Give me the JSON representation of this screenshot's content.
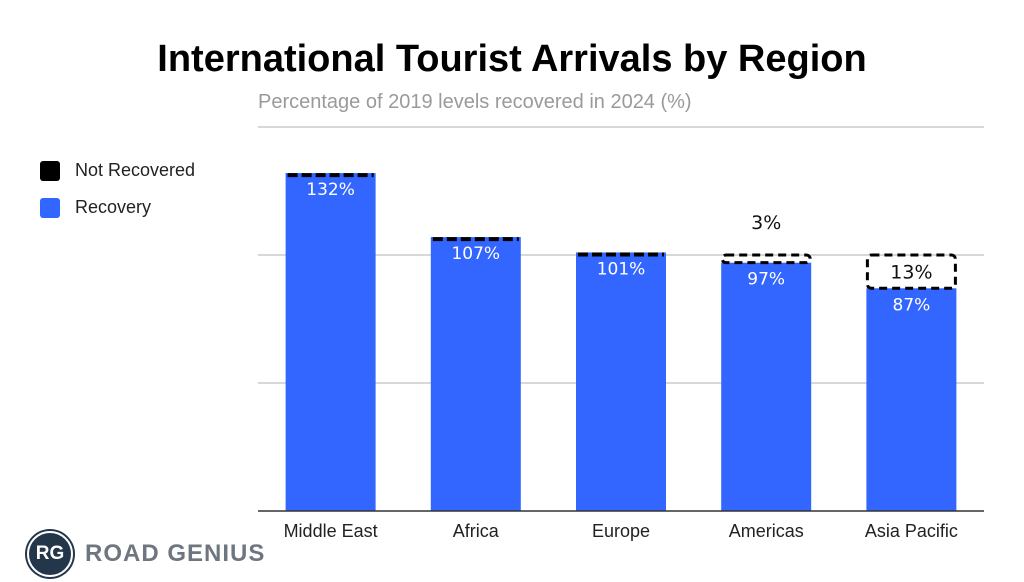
{
  "chart_data": {
    "type": "bar",
    "stacked": true,
    "title": "International Tourist Arrivals by Region",
    "subtitle": "Percentage of 2019 levels recovered in 2024 (%)",
    "categories": [
      "Middle East",
      "Africa",
      "Europe",
      "Americas",
      "Asia Pacific"
    ],
    "series": [
      {
        "name": "Recovery",
        "color": "#3366ff",
        "values": [
          132,
          107,
          101,
          97,
          87
        ],
        "labels": [
          "132%",
          "107%",
          "101%",
          "97%",
          "87%"
        ]
      },
      {
        "name": "Not Recovered",
        "color": "#000000",
        "values": [
          0,
          0,
          0,
          3,
          13
        ],
        "labels": [
          "",
          "",
          "",
          "3%",
          "13%"
        ]
      }
    ],
    "ylim": [
      0,
      150
    ],
    "gridlines": [
      50,
      100,
      150
    ],
    "grid": true,
    "legend": {
      "placement": "left",
      "entries": [
        "Not Recovered",
        "Recovery"
      ]
    }
  },
  "legend": {
    "items": [
      {
        "label": "Not Recovered",
        "color": "#000000"
      },
      {
        "label": "Recovery",
        "color": "#3366ff"
      }
    ]
  },
  "branding": {
    "badge": "RG",
    "name": "ROAD GENIUS"
  }
}
